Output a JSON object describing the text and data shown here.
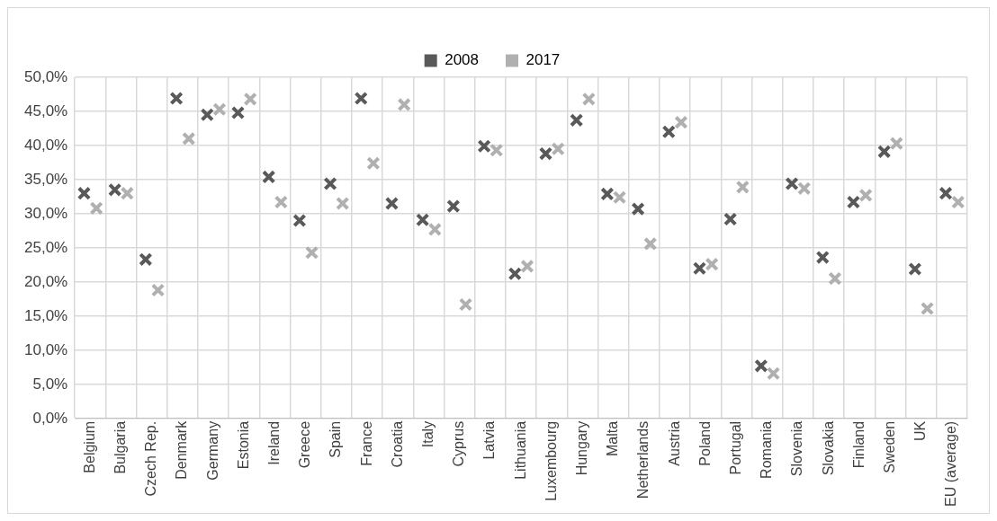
{
  "chart_data": {
    "type": "scatter",
    "categories": [
      "Belgium",
      "Bulgaria",
      "Czech Rep.",
      "Denmark",
      "Germany",
      "Estonia",
      "Ireland",
      "Greece",
      "Spain",
      "France",
      "Croatia",
      "Italy",
      "Cyprus",
      "Latvia",
      "Lithuania",
      "Luxembourg",
      "Hungary",
      "Malta",
      "Netherlands",
      "Austria",
      "Poland",
      "Portugal",
      "Romania",
      "Slovenia",
      "Slovakia",
      "Finland",
      "Sweden",
      "UK",
      "EU (average)"
    ],
    "series": [
      {
        "name": "2008",
        "color": "#595959",
        "values": [
          33.0,
          33.5,
          23.3,
          46.9,
          44.5,
          44.8,
          35.4,
          29.0,
          34.4,
          46.9,
          31.5,
          29.1,
          31.1,
          39.9,
          21.2,
          38.8,
          43.7,
          32.9,
          30.7,
          42.0,
          22.0,
          29.2,
          7.7,
          34.4,
          23.6,
          31.7,
          39.1,
          21.9,
          33.0
        ]
      },
      {
        "name": "2017",
        "color": "#b0b0b0",
        "values": [
          30.8,
          33.0,
          18.8,
          41.0,
          45.3,
          46.8,
          31.7,
          24.3,
          31.5,
          37.4,
          46.0,
          27.7,
          16.7,
          39.3,
          22.3,
          39.5,
          46.8,
          32.4,
          25.6,
          43.4,
          22.6,
          33.9,
          6.6,
          33.7,
          20.5,
          32.7,
          40.3,
          16.1,
          31.7
        ]
      }
    ],
    "ylim": [
      0,
      50
    ],
    "yticks": [
      {
        "value": 0,
        "label": "0,0%"
      },
      {
        "value": 5,
        "label": "5,0%"
      },
      {
        "value": 10,
        "label": "10,0%"
      },
      {
        "value": 15,
        "label": "15,0%"
      },
      {
        "value": 20,
        "label": "20,0%"
      },
      {
        "value": 25,
        "label": "25,0%"
      },
      {
        "value": 30,
        "label": "30,0%"
      },
      {
        "value": 35,
        "label": "35,0%"
      },
      {
        "value": 40,
        "label": "40,0%"
      },
      {
        "value": 45,
        "label": "45,0%"
      },
      {
        "value": 50,
        "label": "50,0%"
      }
    ],
    "grid": true,
    "legend": "top",
    "marker": "cross"
  }
}
